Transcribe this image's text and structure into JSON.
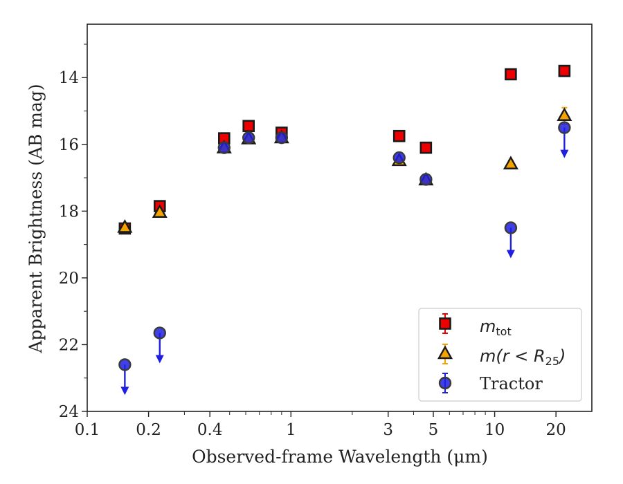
{
  "chart_data": {
    "type": "scatter",
    "xlabel": "Observed-frame Wavelength (μm)",
    "ylabel": "Apparent Brightness (AB mag)",
    "xscale": "log",
    "xlim": [
      0.1,
      30
    ],
    "ylim": [
      24,
      12.4
    ],
    "y_inverted": true,
    "x_ticks": [
      {
        "value": 0.1,
        "label": "0.1"
      },
      {
        "value": 0.2,
        "label": "0.2"
      },
      {
        "value": 0.4,
        "label": "0.4"
      },
      {
        "value": 1,
        "label": "1"
      },
      {
        "value": 3,
        "label": "3"
      },
      {
        "value": 5,
        "label": "5"
      },
      {
        "value": 10,
        "label": "10"
      },
      {
        "value": 20,
        "label": "20"
      }
    ],
    "y_ticks": [
      {
        "value": 14,
        "label": "14"
      },
      {
        "value": 16,
        "label": "16"
      },
      {
        "value": 18,
        "label": "18"
      },
      {
        "value": 20,
        "label": "20"
      },
      {
        "value": 22,
        "label": "22"
      },
      {
        "value": 24,
        "label": "24"
      }
    ],
    "grid": false,
    "legend_position": "lower-right",
    "series": [
      {
        "name": "m_tot",
        "marker": "square",
        "color": "#ee0000",
        "points": [
          {
            "x": 0.153,
            "y": 18.52
          },
          {
            "x": 0.227,
            "y": 17.85
          },
          {
            "x": 0.47,
            "y": 15.82
          },
          {
            "x": 0.62,
            "y": 15.45
          },
          {
            "x": 0.9,
            "y": 15.65
          },
          {
            "x": 3.4,
            "y": 15.75
          },
          {
            "x": 4.6,
            "y": 16.1
          },
          {
            "x": 12.0,
            "y": 13.9
          },
          {
            "x": 22.0,
            "y": 13.8
          }
        ]
      },
      {
        "name": "m(r < R25)",
        "marker": "triangle",
        "color": "#f5a300",
        "points": [
          {
            "x": 0.153,
            "y": 18.5,
            "err": 0.08
          },
          {
            "x": 0.227,
            "y": 18.05,
            "err": 0.08
          },
          {
            "x": 0.47,
            "y": 16.12
          },
          {
            "x": 0.62,
            "y": 15.85
          },
          {
            "x": 0.9,
            "y": 15.82
          },
          {
            "x": 3.4,
            "y": 16.5
          },
          {
            "x": 4.6,
            "y": 17.08
          },
          {
            "x": 12.0,
            "y": 16.6,
            "err": 0.12
          },
          {
            "x": 22.0,
            "y": 15.15,
            "err": 0.25
          }
        ]
      },
      {
        "name": "Tractor",
        "marker": "circle",
        "color": "#1f1fe0",
        "points": [
          {
            "x": 0.153,
            "y": 22.6,
            "upper_limit": true
          },
          {
            "x": 0.227,
            "y": 21.65,
            "upper_limit": true
          },
          {
            "x": 0.47,
            "y": 16.1
          },
          {
            "x": 0.62,
            "y": 15.8
          },
          {
            "x": 0.9,
            "y": 15.8
          },
          {
            "x": 3.4,
            "y": 16.4
          },
          {
            "x": 4.6,
            "y": 17.05
          },
          {
            "x": 12.0,
            "y": 18.5,
            "upper_limit": true
          },
          {
            "x": 22.0,
            "y": 15.5,
            "upper_limit": true
          }
        ]
      }
    ],
    "legend": [
      {
        "label": "m",
        "sub": "tot",
        "marker": "square"
      },
      {
        "label": "m(r < R",
        "sub": "25",
        "tail": ")",
        "marker": "triangle"
      },
      {
        "label": "Tractor",
        "marker": "circle"
      }
    ]
  }
}
